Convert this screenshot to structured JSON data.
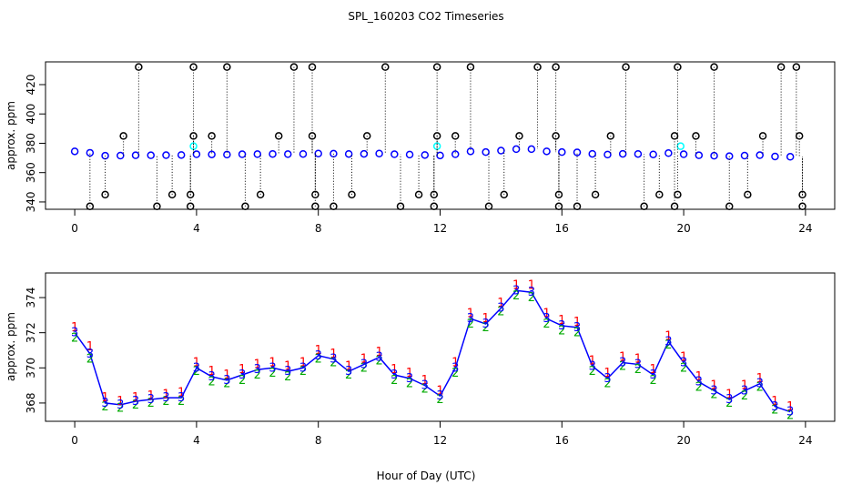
{
  "chart_data": [
    {
      "type": "scatter",
      "title": "SPL_160203  CO2 Timeseries",
      "ylabel": "approx. ppm",
      "xlim": [
        -0.96,
        24.96
      ],
      "ylim": [
        335,
        435.5
      ],
      "xticks": [
        0,
        4,
        8,
        12,
        16,
        20,
        24
      ],
      "yticks": [
        340,
        360,
        380,
        400,
        420
      ],
      "series": [
        {
          "color": "#0000ff",
          "x": [
            0,
            0.5,
            1,
            1.5,
            2,
            2.5,
            3,
            3.5,
            4,
            4.5,
            5,
            5.5,
            6,
            6.5,
            7,
            7.5,
            8,
            8.5,
            9,
            9.5,
            10,
            10.5,
            11,
            11.5,
            12,
            12.5,
            13,
            13.5,
            14,
            14.5,
            15,
            15.5,
            16,
            16.5,
            17,
            17.5,
            18,
            18.5,
            19,
            19.5,
            20,
            20.5,
            21,
            21.5,
            22,
            22.5,
            23,
            23.5
          ],
          "values": [
            374.5,
            373.5,
            371.5,
            371.6,
            371.8,
            371.8,
            371.9,
            372,
            372.5,
            372.4,
            372.3,
            372.5,
            372.6,
            372.7,
            372.6,
            372.7,
            373,
            372.9,
            372.7,
            372.8,
            373,
            372.5,
            372.3,
            372,
            371.7,
            372.5,
            374.5,
            374,
            375,
            376,
            376,
            374.5,
            374,
            373.8,
            372.8,
            372.3,
            372.8,
            372.7,
            372.4,
            373.3,
            372.5,
            371.8,
            371.5,
            371.2,
            371.6,
            371.9,
            371,
            370.8
          ]
        },
        {
          "color": "#00ffff",
          "x": [
            3.9,
            11.9,
            19.9
          ],
          "values": [
            378,
            378,
            378
          ]
        },
        {
          "color": "#000000",
          "x": [
            0.5,
            1.0,
            1.6,
            2.1,
            2.7,
            3.2,
            3.8,
            3.8,
            3.9,
            3.9,
            4.5,
            5.0,
            5.6,
            6.1,
            6.7,
            7.2,
            7.8,
            7.8,
            7.9,
            7.9,
            8.5,
            9.1,
            9.6,
            10.2,
            10.7,
            11.3,
            11.8,
            11.8,
            11.9,
            11.9,
            12.5,
            13.0,
            13.6,
            14.1,
            14.6,
            15.2,
            15.8,
            15.8,
            15.9,
            15.9,
            16.5,
            17.1,
            17.6,
            18.1,
            18.7,
            19.2,
            19.7,
            19.7,
            19.8,
            19.8,
            20.4,
            21.0,
            21.5,
            22.1,
            22.6,
            23.2,
            23.7,
            23.8,
            23.9,
            23.9
          ],
          "values": [
            337,
            345,
            385,
            432,
            337,
            345,
            337,
            345,
            385,
            432,
            385,
            432,
            337,
            345,
            385,
            432,
            432,
            385,
            345,
            337,
            337,
            345,
            385,
            432,
            337,
            345,
            345,
            337,
            385,
            432,
            385,
            432,
            337,
            345,
            385,
            432,
            432,
            385,
            345,
            337,
            337,
            345,
            385,
            432,
            337,
            345,
            385,
            337,
            432,
            345,
            385,
            432,
            337,
            345,
            385,
            432,
            432,
            385,
            345,
            337
          ]
        }
      ]
    },
    {
      "type": "text-marker",
      "ylabel": "approx. ppm",
      "xlabel": "Hour of Day (UTC)",
      "xlim": [
        -0.96,
        24.96
      ],
      "ylim": [
        366.96,
        375.4
      ],
      "xticks": [
        0,
        4,
        8,
        12,
        16,
        20,
        24
      ],
      "yticks": [
        368,
        370,
        372,
        374
      ],
      "x": [
        0,
        0.5,
        1,
        1.5,
        2,
        2.5,
        3,
        3.5,
        4,
        4.5,
        5,
        5.5,
        6,
        6.5,
        7,
        7.5,
        8,
        8.5,
        9,
        9.5,
        10,
        10.5,
        11,
        11.5,
        12,
        12.5,
        13,
        13.5,
        14,
        14.5,
        15,
        15.5,
        16,
        16.5,
        17,
        17.5,
        18,
        18.5,
        19,
        19.5,
        20,
        20.5,
        21,
        21.5,
        22,
        22.5,
        23,
        23.5
      ],
      "series": [
        {
          "name": "1",
          "color": "#ff0000",
          "values": [
            372.3,
            371.2,
            368.3,
            368.1,
            368.3,
            368.4,
            368.5,
            368.6,
            370.3,
            369.8,
            369.6,
            369.9,
            370.2,
            370.3,
            370.1,
            370.3,
            371,
            370.8,
            370.1,
            370.5,
            370.9,
            369.9,
            369.7,
            369.3,
            368.7,
            370.3,
            373.1,
            372.8,
            373.7,
            374.7,
            374.7,
            373.1,
            372.7,
            372.6,
            370.4,
            369.7,
            370.6,
            370.5,
            369.9,
            371.8,
            370.6,
            369.5,
            369,
            368.5,
            369,
            369.4,
            368.1,
            367.8
          ]
        },
        {
          "name": "2",
          "color": "#00aa00",
          "values": [
            371.7,
            370.5,
            367.8,
            367.7,
            367.9,
            368,
            368.1,
            368.1,
            369.8,
            369.2,
            369.1,
            369.3,
            369.6,
            369.7,
            369.5,
            369.8,
            370.5,
            370.3,
            369.6,
            370,
            370.4,
            369.3,
            369.1,
            368.8,
            368.2,
            369.7,
            372.5,
            372.3,
            373.2,
            374.1,
            374,
            372.5,
            372.1,
            372,
            369.8,
            369.1,
            370.1,
            369.9,
            369.3,
            371.3,
            370,
            368.9,
            368.5,
            368,
            368.4,
            368.9,
            367.6,
            367.3
          ]
        },
        {
          "name": "3",
          "color": "#0000ff",
          "values": [
            372,
            370.8,
            368,
            367.9,
            368.1,
            368.2,
            368.3,
            368.3,
            370,
            369.5,
            369.3,
            369.6,
            369.9,
            370,
            369.8,
            370,
            370.7,
            370.5,
            369.8,
            370.2,
            370.6,
            369.6,
            369.4,
            369,
            368.4,
            370,
            372.8,
            372.5,
            373.4,
            374.4,
            374.3,
            372.8,
            372.4,
            372.3,
            370.1,
            369.4,
            370.3,
            370.2,
            369.6,
            371.5,
            370.3,
            369.2,
            368.7,
            368.2,
            368.7,
            369.1,
            367.8,
            367.5
          ]
        }
      ]
    }
  ]
}
